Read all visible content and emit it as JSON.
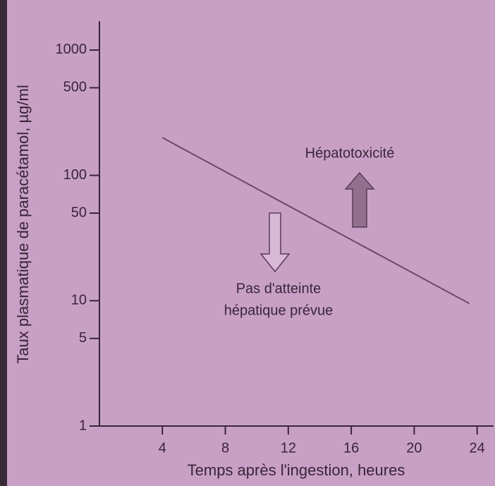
{
  "chart_data": {
    "type": "line",
    "x_label": "Temps après l'ingestion, heures",
    "y_label": "Taux plasmatique de paracétamol, µg/ml",
    "annotations": [
      "Hépatotoxicité",
      "Pas d'atteinte",
      "hépatique prévue"
    ],
    "x": [
      4,
      23.5
    ],
    "series": [
      {
        "name": null,
        "color": "#6a4a68",
        "values": [
          200,
          9.5
        ]
      }
    ],
    "xlim": [
      0,
      25
    ],
    "xticks": [
      4,
      8,
      12,
      16,
      20,
      24
    ],
    "ylim": [
      1,
      1700
    ],
    "yticks": [
      1,
      5,
      10,
      50,
      100,
      500,
      1000
    ],
    "y_log": true,
    "grid": false
  }
}
